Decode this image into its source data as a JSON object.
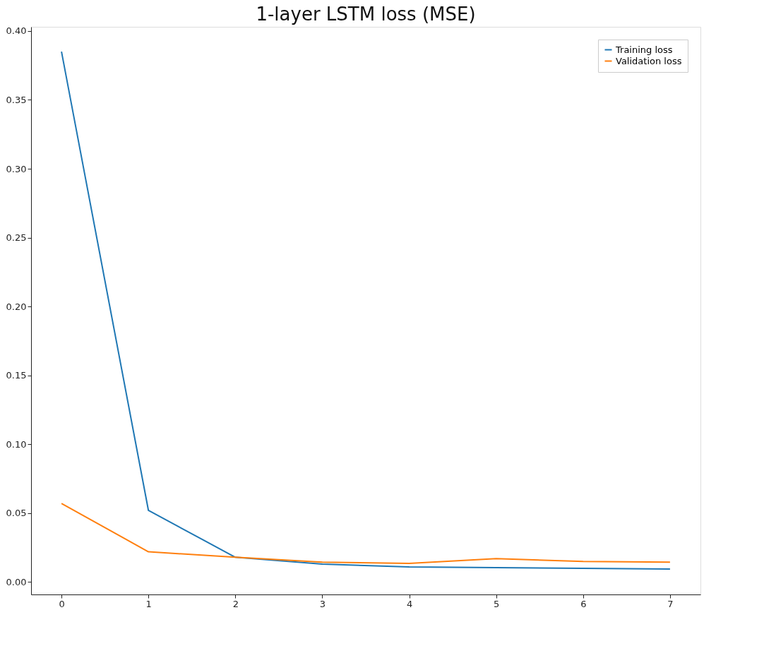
{
  "chart_data": {
    "type": "line",
    "title": "1-layer LSTM loss (MSE)",
    "x": [
      0,
      1,
      2,
      3,
      4,
      5,
      6,
      7
    ],
    "series": [
      {
        "name": "Training loss",
        "color": "#1f77b4",
        "values": [
          0.385,
          0.052,
          0.018,
          0.013,
          0.011,
          0.0105,
          0.01,
          0.0095
        ]
      },
      {
        "name": "Validation loss",
        "color": "#ff7f0e",
        "values": [
          0.057,
          0.022,
          0.018,
          0.0145,
          0.0135,
          0.017,
          0.015,
          0.0145
        ]
      }
    ],
    "xlim": [
      -0.35,
      7.35
    ],
    "ylim": [
      -0.009,
      0.403
    ],
    "xticks": [
      0,
      1,
      2,
      3,
      4,
      5,
      6,
      7
    ],
    "yticks": [
      {
        "value": 0,
        "label": "0.00"
      },
      {
        "value": 0.05,
        "label": "0.05"
      },
      {
        "value": 0.1,
        "label": "0.10"
      },
      {
        "value": 0.15,
        "label": "0.15"
      },
      {
        "value": 0.2,
        "label": "0.20"
      },
      {
        "value": 0.25,
        "label": "0.25"
      },
      {
        "value": 0.3,
        "label": "0.30"
      },
      {
        "value": 0.35,
        "label": "0.35"
      },
      {
        "value": 0.4,
        "label": "0.40"
      }
    ],
    "grid": false,
    "legend": "top right",
    "marker": "none",
    "line_style": "solid"
  }
}
